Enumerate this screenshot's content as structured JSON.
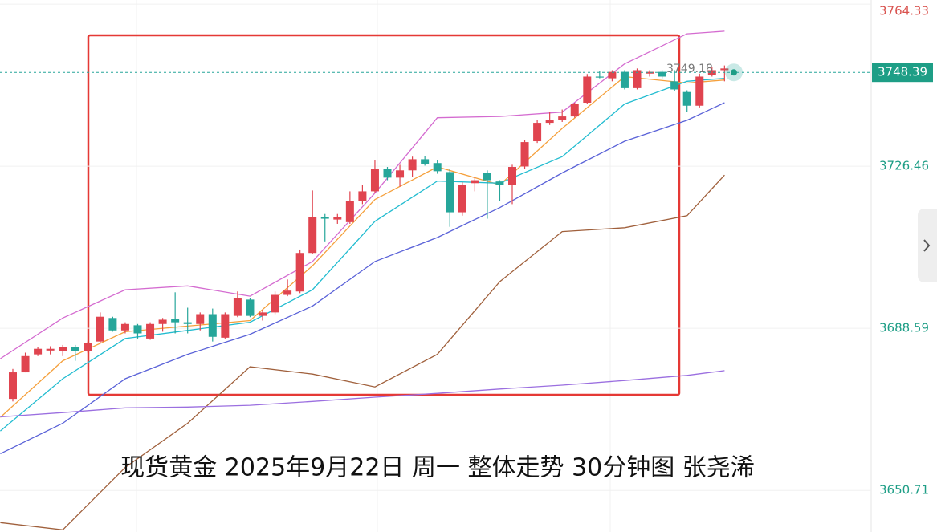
{
  "chart_data": {
    "type": "candlestick",
    "caption": "现货黄金  2025年9月22日 周一 整体走势 30分钟图 张尧浠",
    "ylim": [
      3641.0,
      3765.3
    ],
    "yticks": [
      3650.71,
      3688.59,
      3726.46,
      3764.33
    ],
    "current_price": 3748.39,
    "high_annotation": 3749.18,
    "up_color": "#e0444f",
    "down_color": "#26a69a",
    "open": [
      3672.1,
      3678.3,
      3682.5,
      3683.4,
      3683.2,
      3684.2,
      3683.2,
      3685.5,
      3691.0,
      3688.1,
      3689.3,
      3686.2,
      3689.6,
      3690.8,
      3690.0,
      3689.6,
      3691.9,
      3686.4,
      3691.5,
      3695.3,
      3691.5,
      3692.3,
      3696.4,
      3697.2,
      3706.2,
      3714.6,
      3714.0,
      3713.4,
      3718.3,
      3720.6,
      3725.9,
      3723.8,
      3725.5,
      3728.1,
      3727.2,
      3725.1,
      3715.7,
      3722.5,
      3724.9,
      3722.9,
      3722.1,
      3726.4,
      3732.3,
      3736.6,
      3737.2,
      3738.1,
      3741.3,
      3747.4,
      3747.0,
      3748.5,
      3744.7,
      3748.1,
      3748.5,
      3746.3,
      3743.8,
      3740.6,
      3747.8,
      3748.9
    ],
    "high": [
      3679.1,
      3682.9,
      3684.2,
      3684.4,
      3684.7,
      3684.7,
      3685.5,
      3692.3,
      3691.3,
      3690.0,
      3689.6,
      3690.0,
      3691.0,
      3697.0,
      3693.4,
      3692.3,
      3693.2,
      3692.3,
      3697.2,
      3695.7,
      3692.9,
      3697.2,
      3700.0,
      3707.0,
      3720.8,
      3715.3,
      3715.3,
      3720.6,
      3722.1,
      3727.8,
      3726.3,
      3726.8,
      3728.7,
      3728.9,
      3727.8,
      3725.9,
      3722.7,
      3724.0,
      3725.5,
      3723.2,
      3726.8,
      3732.5,
      3737.2,
      3739.1,
      3739.7,
      3741.3,
      3748.0,
      3748.7,
      3748.9,
      3748.9,
      3749.3,
      3748.9,
      3748.9,
      3748.9,
      3744.2,
      3748.1,
      3749.6,
      3750.0
    ],
    "low": [
      3671.5,
      3678.3,
      3682.1,
      3682.5,
      3682.1,
      3681.0,
      3682.9,
      3685.1,
      3687.8,
      3687.4,
      3686.2,
      3685.9,
      3687.8,
      3687.4,
      3687.4,
      3688.1,
      3685.5,
      3686.2,
      3691.2,
      3691.2,
      3690.4,
      3691.9,
      3696.1,
      3696.8,
      3705.9,
      3708.9,
      3713.0,
      3713.0,
      3717.6,
      3720.2,
      3723.2,
      3721.7,
      3724.0,
      3726.6,
      3724.7,
      3712.3,
      3714.9,
      3720.6,
      3714.2,
      3718.3,
      3717.6,
      3725.9,
      3731.9,
      3736.1,
      3736.8,
      3737.8,
      3741.0,
      3747.0,
      3746.3,
      3744.4,
      3744.4,
      3747.4,
      3747.0,
      3744.0,
      3739.1,
      3740.2,
      3747.4,
      3746.3
    ],
    "close": [
      3678.3,
      3682.1,
      3683.8,
      3683.8,
      3684.2,
      3683.2,
      3685.1,
      3691.3,
      3688.1,
      3689.6,
      3687.4,
      3689.6,
      3690.6,
      3690.0,
      3689.6,
      3691.9,
      3686.6,
      3691.9,
      3695.7,
      3691.5,
      3692.3,
      3696.4,
      3697.4,
      3706.2,
      3714.6,
      3714.2,
      3714.6,
      3718.3,
      3720.6,
      3725.9,
      3723.8,
      3725.5,
      3728.1,
      3727.0,
      3725.3,
      3715.7,
      3722.1,
      3723.2,
      3723.2,
      3722.1,
      3726.3,
      3732.1,
      3736.6,
      3737.2,
      3738.1,
      3741.0,
      3747.4,
      3747.4,
      3748.5,
      3744.7,
      3748.9,
      3748.5,
      3747.4,
      3744.4,
      3740.6,
      3747.4,
      3748.9,
      3749.3
    ],
    "lines": [
      {
        "color": "#d46bd0",
        "x": [
          -1,
          4,
          9,
          14,
          19,
          24,
          29,
          34,
          39,
          44,
          49,
          54,
          57
        ],
        "values": [
          3681.5,
          3691.0,
          3697.6,
          3698.5,
          3696.1,
          3704.2,
          3720.2,
          3737.8,
          3738.1,
          3739.1,
          3750.4,
          3757.4,
          3758.0
        ]
      },
      {
        "color": "#f5a03c",
        "x": [
          -1,
          4,
          9,
          14,
          19,
          24,
          29,
          34,
          39,
          44,
          49,
          54,
          57
        ],
        "values": [
          3667.8,
          3681.0,
          3687.8,
          3689.1,
          3690.4,
          3703.2,
          3718.7,
          3726.3,
          3722.1,
          3735.3,
          3747.4,
          3745.9,
          3746.6
        ]
      },
      {
        "color": "#22bcd0",
        "x": [
          -1,
          4,
          9,
          14,
          19,
          24,
          29,
          34,
          39,
          44,
          49,
          54,
          57
        ],
        "values": [
          3664.6,
          3676.8,
          3686.2,
          3688.1,
          3690.0,
          3697.6,
          3713.6,
          3723.0,
          3722.5,
          3728.7,
          3741.0,
          3746.3,
          3747.0
        ]
      },
      {
        "color": "#5a62d8",
        "x": [
          -1,
          4,
          9,
          14,
          19,
          24,
          29,
          34,
          39,
          44,
          49,
          54,
          57
        ],
        "values": [
          3659.3,
          3666.4,
          3676.8,
          3682.5,
          3687.2,
          3693.8,
          3704.2,
          3709.8,
          3716.8,
          3724.9,
          3732.3,
          3737.2,
          3741.3
        ]
      },
      {
        "color": "#a0603c",
        "x": [
          -1,
          4,
          9,
          14,
          19,
          24,
          29,
          34,
          39,
          44,
          49,
          54,
          57
        ],
        "values": [
          3643.2,
          3641.5,
          3656.1,
          3666.4,
          3679.6,
          3677.9,
          3674.9,
          3682.5,
          3699.5,
          3711.2,
          3712.1,
          3714.9,
          3724.4
        ]
      },
      {
        "color": "#9b6fe0",
        "x": [
          -1,
          4,
          9,
          14,
          19,
          24,
          29,
          34,
          39,
          44,
          49,
          54,
          57
        ],
        "values": [
          3667.9,
          3668.9,
          3670.0,
          3670.2,
          3670.6,
          3671.5,
          3672.5,
          3673.4,
          3674.4,
          3675.3,
          3676.4,
          3677.6,
          3678.7
        ]
      }
    ]
  }
}
